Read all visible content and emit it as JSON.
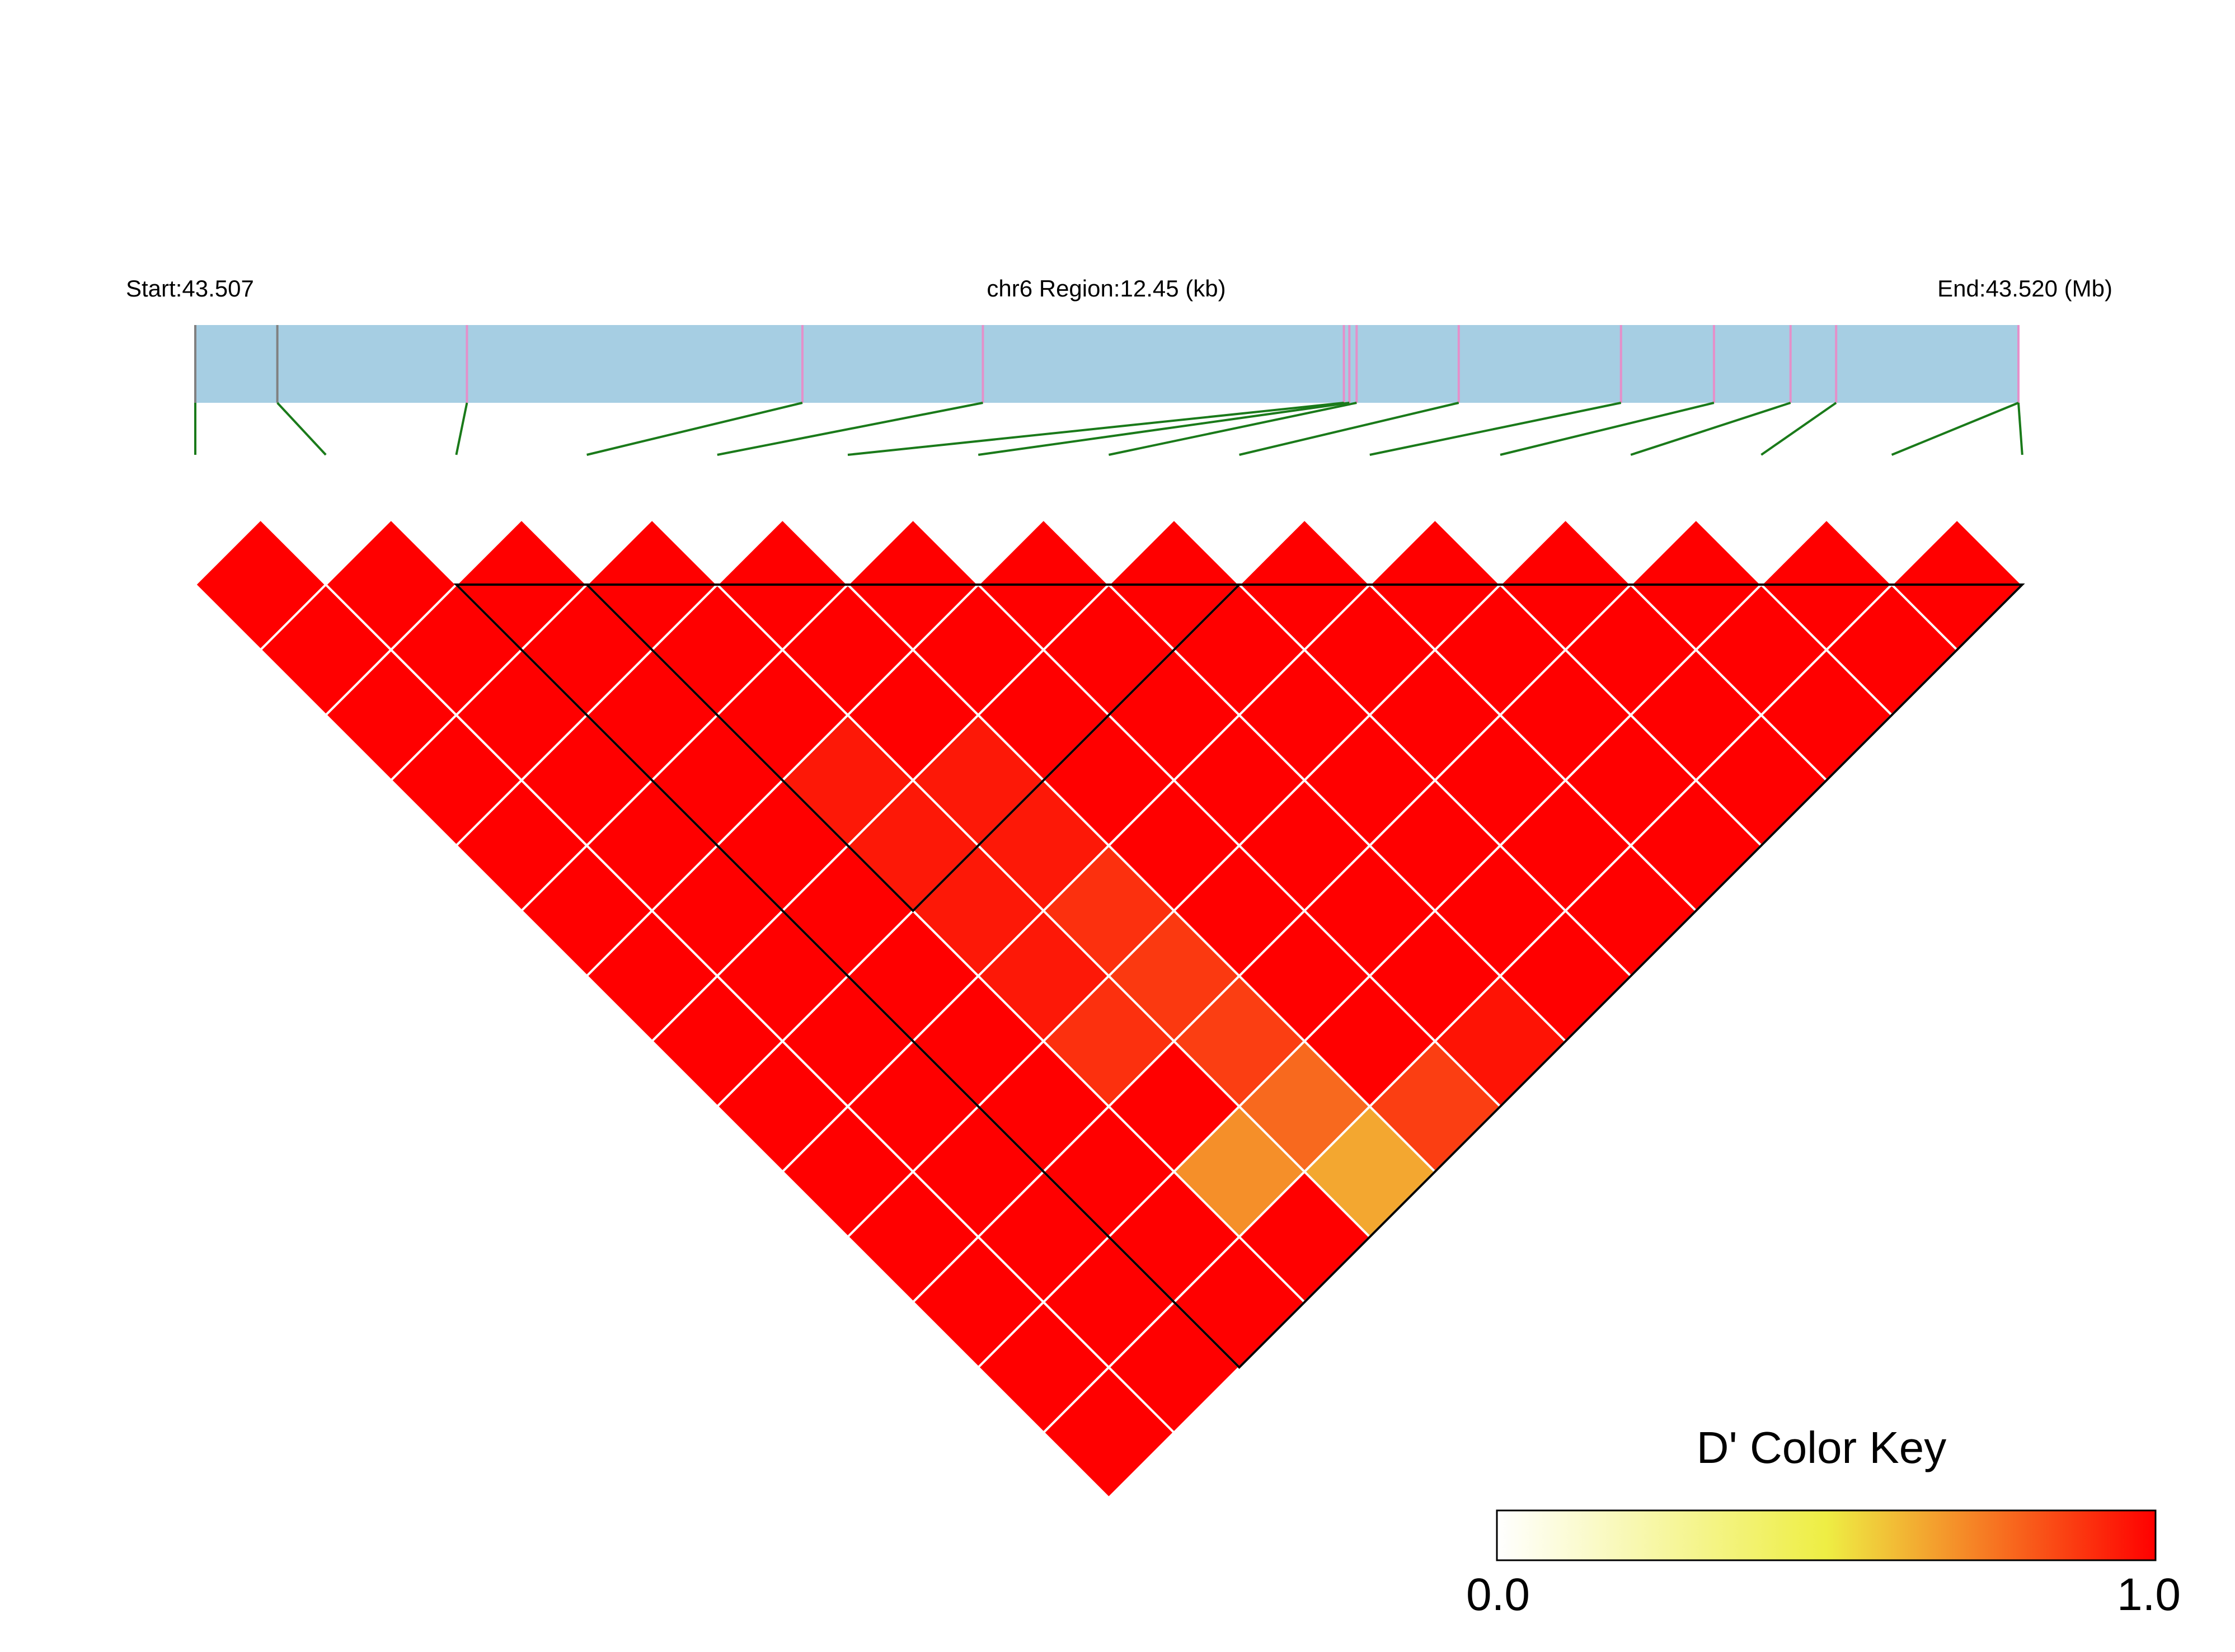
{
  "header": {
    "start_label": "Start:43.507",
    "region_label": "chr6 Region:12.45 (kb)",
    "end_label": "End:43.520 (Mb)"
  },
  "colors": {
    "region_bar": "#a6cee3",
    "snp_tick": "#e58fc9",
    "snp_tick_edge": "#808080",
    "connector": "#1a7a1a",
    "cell_divider": "#ffffff",
    "block_outline": "#000000",
    "key_low": "#ffffff",
    "key_mid": "#eeee44",
    "key_high": "#ff0000"
  },
  "chart_data": {
    "type": "heatmap",
    "title": "",
    "region": {
      "chromosome": "chr6",
      "start_mb": 43.507,
      "end_mb": 43.52,
      "length_kb": 12.45
    },
    "snp_count": 15,
    "snp_positions_relative": [
      0.0,
      0.045,
      0.149,
      0.333,
      0.432,
      0.63,
      0.633,
      0.637,
      0.693,
      0.782,
      0.833,
      0.875,
      0.9,
      1.0,
      1.0
    ],
    "value_label": "D'",
    "value_range": [
      0.0,
      1.0
    ],
    "dprime_exceptions": [
      {
        "i": 3,
        "j": 7,
        "value": 0.95
      },
      {
        "i": 4,
        "j": 8,
        "value": 0.95
      },
      {
        "i": 3,
        "j": 8,
        "value": 0.95
      },
      {
        "i": 4,
        "j": 9,
        "value": 0.95
      },
      {
        "i": 3,
        "j": 9,
        "value": 0.95
      },
      {
        "i": 4,
        "j": 10,
        "value": 0.9
      },
      {
        "i": 3,
        "j": 10,
        "value": 0.95
      },
      {
        "i": 4,
        "j": 11,
        "value": 0.88
      },
      {
        "i": 3,
        "j": 11,
        "value": 0.9
      },
      {
        "i": 4,
        "j": 12,
        "value": 0.87
      },
      {
        "i": 4,
        "j": 13,
        "value": 0.78
      },
      {
        "i": 3,
        "j": 13,
        "value": 0.7
      },
      {
        "i": 4,
        "j": 14,
        "value": 0.65
      },
      {
        "i": 5,
        "j": 14,
        "value": 0.87
      },
      {
        "i": 6,
        "j": 14,
        "value": 0.96
      }
    ],
    "blocks": [
      {
        "first": 2,
        "last": 14
      },
      {
        "first": 3,
        "last": 8
      }
    ],
    "legend": {
      "title": "D' Color Key",
      "min_label": "0.0",
      "max_label": "1.0",
      "placement": "bottom-right"
    }
  }
}
